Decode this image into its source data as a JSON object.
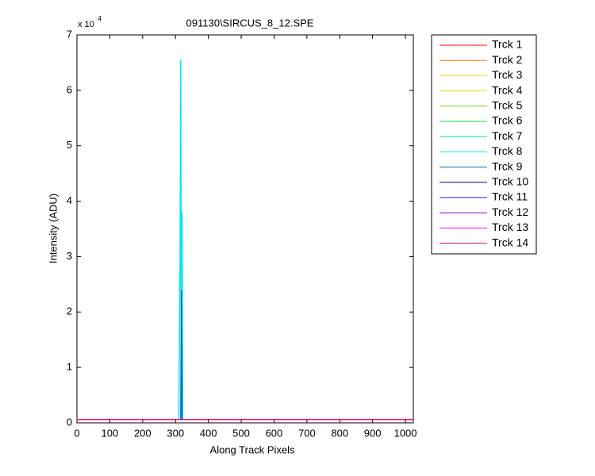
{
  "chart_data": {
    "type": "line",
    "title": "091130\\SIRCUS_8_12.SPE",
    "x_label": "Along Track Pixels",
    "y_label": "Intensity (ADU)",
    "y_multiplier": "x 10",
    "y_exponent": "4",
    "x": [
      0,
      310,
      314,
      316,
      318,
      320,
      322,
      326,
      1024
    ],
    "xlim": [
      0,
      1024
    ],
    "xticks": [
      0,
      100,
      200,
      300,
      400,
      500,
      600,
      700,
      800,
      900,
      1000
    ],
    "ylim": [
      0,
      7
    ],
    "yticks": [
      0,
      1,
      2,
      3,
      4,
      5,
      6,
      7
    ],
    "legend": "outside-right",
    "series": [
      {
        "name": "Trck 1",
        "color": "#ff0000",
        "values": [
          0.06,
          0.06,
          0.06,
          0.06,
          0.06,
          0.06,
          0.06,
          0.06,
          0.06
        ]
      },
      {
        "name": "Trck 2",
        "color": "#ff7000",
        "values": [
          0.06,
          0.06,
          0.06,
          0.06,
          0.06,
          0.06,
          0.06,
          0.06,
          0.06
        ]
      },
      {
        "name": "Trck 3",
        "color": "#ffd800",
        "values": [
          0.06,
          0.06,
          0.06,
          0.06,
          0.06,
          0.06,
          0.06,
          0.06,
          0.06
        ]
      },
      {
        "name": "Trck 4",
        "color": "#e0e000",
        "values": [
          0.06,
          0.06,
          0.06,
          0.06,
          0.06,
          0.06,
          0.06,
          0.06,
          0.06
        ]
      },
      {
        "name": "Trck 5",
        "color": "#70e000",
        "values": [
          0.06,
          0.06,
          0.06,
          0.06,
          0.06,
          0.06,
          0.06,
          0.06,
          0.06
        ]
      },
      {
        "name": "Trck 6",
        "color": "#00e040",
        "values": [
          0.06,
          0.06,
          0.06,
          0.06,
          0.06,
          0.06,
          0.06,
          0.06,
          0.06
        ]
      },
      {
        "name": "Trck 7",
        "color": "#00e8a0",
        "values": [
          0.06,
          0.06,
          0.06,
          0.06,
          0.06,
          0.06,
          0.06,
          0.06,
          0.06
        ]
      },
      {
        "name": "Trck 8",
        "color": "#00e8f0",
        "values": [
          0.06,
          0.06,
          3.0,
          6.55,
          0.2,
          3.8,
          0.06,
          0.06,
          0.06
        ]
      },
      {
        "name": "Trck 9",
        "color": "#0070c0",
        "values": [
          0.06,
          0.06,
          0.06,
          0.06,
          2.4,
          0.06,
          0.06,
          0.06,
          0.06
        ]
      },
      {
        "name": "Trck 10",
        "color": "#000070",
        "values": [
          0.06,
          0.06,
          0.06,
          0.06,
          0.06,
          0.06,
          0.06,
          0.06,
          0.06
        ]
      },
      {
        "name": "Trck 11",
        "color": "#4000e0",
        "values": [
          0.06,
          0.06,
          0.06,
          0.06,
          0.06,
          0.06,
          0.06,
          0.06,
          0.06
        ]
      },
      {
        "name": "Trck 12",
        "color": "#9000c0",
        "values": [
          0.06,
          0.06,
          0.06,
          0.06,
          0.06,
          0.06,
          0.06,
          0.06,
          0.06
        ]
      },
      {
        "name": "Trck 13",
        "color": "#ff00ff",
        "values": [
          0.06,
          0.06,
          0.06,
          0.06,
          0.06,
          0.06,
          0.06,
          0.06,
          0.06
        ]
      },
      {
        "name": "Trck 14",
        "color": "#ff0070",
        "values": [
          0.06,
          0.06,
          0.06,
          0.06,
          0.06,
          0.06,
          0.06,
          0.06,
          0.06
        ]
      }
    ]
  }
}
